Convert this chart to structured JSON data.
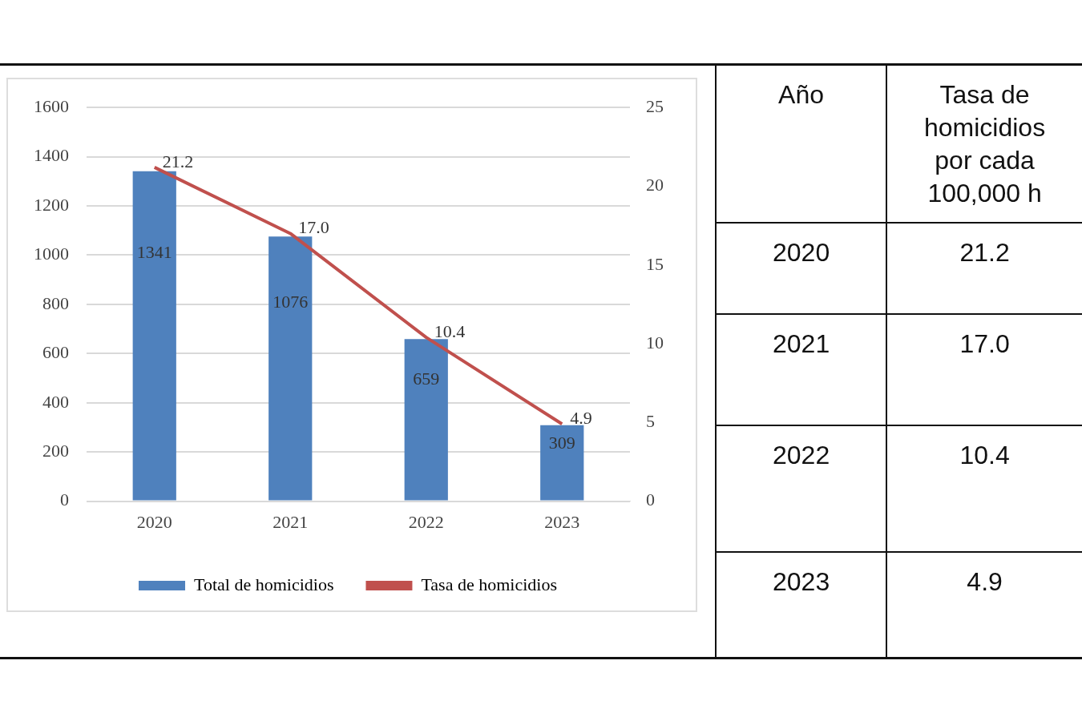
{
  "chart_data": {
    "type": "bar",
    "categories": [
      "2020",
      "2021",
      "2022",
      "2023"
    ],
    "series": [
      {
        "name": "Total de homicidios",
        "color": "#4f81bd",
        "values": [
          1341,
          1076,
          659,
          309
        ],
        "value_labels": [
          "1341",
          "1076",
          "659",
          "309"
        ]
      },
      {
        "name": "Tasa de homicidios",
        "type": "line",
        "axis": "y2",
        "color": "#c0504d",
        "values": [
          21.2,
          17.0,
          10.4,
          4.9
        ],
        "value_labels": [
          "21.2",
          "17.0",
          "10.4",
          "4.9"
        ],
        "marker": "none"
      }
    ],
    "ylim": [
      0,
      1600
    ],
    "yticks": [
      0,
      200,
      400,
      600,
      800,
      1000,
      1200,
      1400,
      1600
    ],
    "y2lim": [
      0,
      25
    ],
    "y2ticks": [
      0,
      5,
      10,
      15,
      20,
      25
    ],
    "grid": "y",
    "legend": "bottom",
    "annotations": [
      "Año",
      "Tasa de homicidios por cada 100,000 h"
    ]
  }
}
